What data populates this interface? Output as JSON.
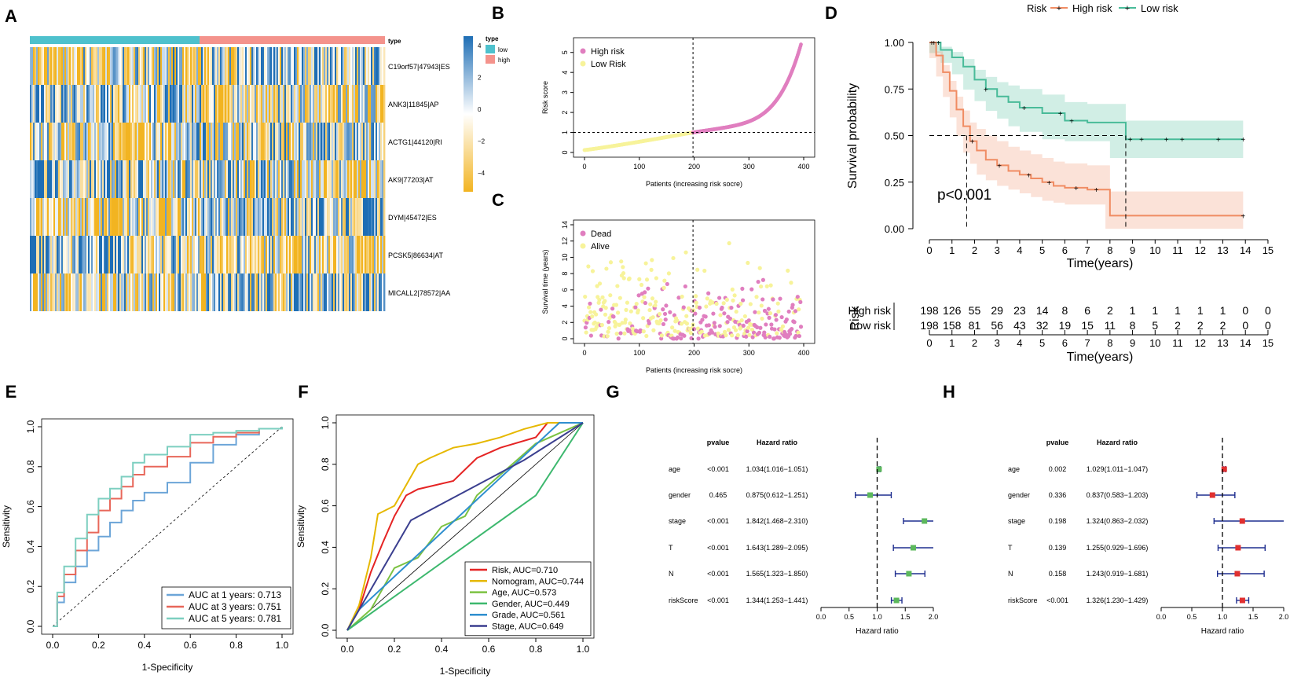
{
  "chart_data": [
    {
      "panel": "A",
      "type": "heatmap",
      "annotation_title": "type",
      "groups": [
        {
          "name": "low",
          "color": "#4EC1CD"
        },
        {
          "name": "high",
          "color": "#F4938C"
        }
      ],
      "rows": [
        "C19orf57|47943|ES",
        "ANK3|11845|AP",
        "ACTG1|44120|RI",
        "AK9|77203|AT",
        "DYM|45472|ES",
        "PCSK5|86634|AT",
        "MICALL2|78572|AA"
      ],
      "scale_ticks": [
        "4",
        "2",
        "0",
        "−2",
        "−4"
      ],
      "scale_colors": [
        "#1E6EB5",
        "#FFFFFF",
        "#F2B421"
      ]
    },
    {
      "panel": "B",
      "type": "scatter",
      "xlabel": "Patients (increasing risk socre)",
      "ylabel": "Risk score",
      "xticks": [
        "0",
        "100",
        "200",
        "300",
        "400"
      ],
      "yticks": [
        "0",
        "1",
        "2",
        "3",
        "4",
        "5"
      ],
      "xlim": [
        0,
        400
      ],
      "ylim": [
        0,
        5.5
      ],
      "cutoff_x": 198,
      "cutoff_y": 1,
      "legend": [
        "High risk",
        "Low Risk"
      ],
      "colors": {
        "high": "#E07EBF",
        "low": "#F7F39A"
      }
    },
    {
      "panel": "C",
      "type": "scatter",
      "xlabel": "Patients (increasing risk socre)",
      "ylabel": "Survival time (years)",
      "xticks": [
        "0",
        "100",
        "200",
        "300",
        "400"
      ],
      "yticks": [
        "0",
        "2",
        "4",
        "6",
        "8",
        "10",
        "12",
        "14"
      ],
      "xlim": [
        0,
        400
      ],
      "ylim": [
        0,
        14
      ],
      "cutoff_x": 198,
      "legend": [
        "Dead",
        "Alive"
      ],
      "colors": {
        "dead": "#E07EBF",
        "alive": "#F7F39A"
      }
    },
    {
      "panel": "D",
      "type": "line",
      "legend_title": "Risk",
      "legend": [
        "High risk",
        "Low risk"
      ],
      "colors": {
        "high": "#F08C63",
        "low": "#49BB99"
      },
      "xlabel": "Time(years)",
      "ylabel": "Survival probability",
      "xticks": [
        "0",
        "1",
        "2",
        "3",
        "4",
        "5",
        "6",
        "7",
        "8",
        "9",
        "10",
        "11",
        "12",
        "13",
        "14",
        "15"
      ],
      "yticks": [
        "0.00",
        "0.25",
        "0.50",
        "0.75",
        "1.00"
      ],
      "xlim": [
        0,
        15
      ],
      "ylim": [
        0,
        1
      ],
      "pvalue": "p<0.001",
      "median_high": 1.65,
      "median_low": 8.7,
      "high": {
        "t": [
          0,
          0.3,
          0.6,
          0.9,
          1.2,
          1.5,
          1.8,
          2.1,
          2.5,
          3,
          3.5,
          4,
          4.5,
          5,
          5.5,
          6,
          7,
          7.8,
          8,
          13.9
        ],
        "s": [
          1,
          0.93,
          0.84,
          0.74,
          0.64,
          0.55,
          0.47,
          0.42,
          0.37,
          0.34,
          0.31,
          0.29,
          0.27,
          0.25,
          0.23,
          0.22,
          0.21,
          0.21,
          0.07,
          0.07
        ]
      },
      "low": {
        "t": [
          0,
          0.5,
          1,
          1.5,
          2,
          2.5,
          3,
          3.5,
          4,
          5,
          6,
          7,
          8,
          8.7,
          13.9
        ],
        "s": [
          1,
          0.96,
          0.92,
          0.87,
          0.8,
          0.75,
          0.71,
          0.68,
          0.65,
          0.62,
          0.58,
          0.57,
          0.57,
          0.48,
          0.48
        ]
      },
      "risk_table": {
        "title": "Risk",
        "rows": [
          {
            "name": "High risk",
            "counts": [
              "198",
              "126",
              "55",
              "29",
              "23",
              "14",
              "8",
              "6",
              "2",
              "1",
              "1",
              "1",
              "1",
              "1",
              "0",
              "0"
            ]
          },
          {
            "name": "Low risk",
            "counts": [
              "198",
              "158",
              "81",
              "56",
              "43",
              "32",
              "19",
              "15",
              "11",
              "8",
              "5",
              "2",
              "2",
              "2",
              "0",
              "0"
            ]
          }
        ],
        "xlabel": "Time(years)"
      }
    },
    {
      "panel": "E",
      "type": "line",
      "xlabel": "1-Specificity",
      "ylabel": "Sensitivity",
      "ticks": [
        "0.0",
        "0.2",
        "0.4",
        "0.6",
        "0.8",
        "1.0"
      ],
      "series": [
        {
          "name": "AUC at 1 years: 0.713",
          "color": "#6CA5D8",
          "x": [
            0,
            0.02,
            0.05,
            0.1,
            0.15,
            0.2,
            0.25,
            0.3,
            0.35,
            0.4,
            0.5,
            0.6,
            0.7,
            0.8,
            0.9,
            1
          ],
          "y": [
            0,
            0.12,
            0.22,
            0.3,
            0.38,
            0.45,
            0.52,
            0.58,
            0.63,
            0.67,
            0.72,
            0.82,
            0.91,
            0.96,
            0.99,
            1
          ]
        },
        {
          "name": "AUC at 3 years: 0.751",
          "color": "#E8675A",
          "x": [
            0,
            0.02,
            0.05,
            0.1,
            0.15,
            0.2,
            0.25,
            0.3,
            0.35,
            0.4,
            0.5,
            0.6,
            0.7,
            0.8,
            0.9,
            1
          ],
          "y": [
            0,
            0.15,
            0.26,
            0.38,
            0.47,
            0.58,
            0.64,
            0.7,
            0.76,
            0.8,
            0.85,
            0.92,
            0.95,
            0.97,
            0.99,
            1
          ]
        },
        {
          "name": "AUC at 5 years: 0.781",
          "color": "#7DCFC0",
          "x": [
            0,
            0.02,
            0.05,
            0.1,
            0.15,
            0.2,
            0.25,
            0.3,
            0.35,
            0.4,
            0.5,
            0.6,
            0.7,
            0.8,
            0.9,
            1
          ],
          "y": [
            0,
            0.17,
            0.3,
            0.44,
            0.56,
            0.64,
            0.69,
            0.75,
            0.82,
            0.86,
            0.9,
            0.96,
            0.97,
            0.98,
            0.99,
            1
          ]
        }
      ]
    },
    {
      "panel": "F",
      "type": "line",
      "xlabel": "1-Specificity",
      "ylabel": "Sensitivity",
      "ticks": [
        "0.0",
        "0.2",
        "0.4",
        "0.6",
        "0.8",
        "1.0"
      ],
      "series": [
        {
          "name": "Risk, AUC=0.710",
          "color": "#E52424",
          "x": [
            0,
            0.05,
            0.1,
            0.15,
            0.2,
            0.25,
            0.3,
            0.45,
            0.55,
            0.65,
            0.8,
            0.85,
            1
          ],
          "y": [
            0,
            0.1,
            0.28,
            0.42,
            0.55,
            0.65,
            0.68,
            0.72,
            0.83,
            0.88,
            0.93,
            1,
            1
          ]
        },
        {
          "name": "Nomogram, AUC=0.744",
          "color": "#E6B800",
          "x": [
            0,
            0.05,
            0.1,
            0.13,
            0.2,
            0.25,
            0.3,
            0.35,
            0.45,
            0.55,
            0.65,
            0.75,
            0.85,
            1
          ],
          "y": [
            0,
            0.12,
            0.35,
            0.56,
            0.6,
            0.7,
            0.8,
            0.83,
            0.88,
            0.9,
            0.93,
            0.97,
            1,
            1
          ]
        },
        {
          "name": "Age, AUC=0.573",
          "color": "#7CC242",
          "x": [
            0,
            0.1,
            0.2,
            0.3,
            0.4,
            0.5,
            0.55,
            0.6,
            0.7,
            0.8,
            0.9,
            1
          ],
          "y": [
            0,
            0.1,
            0.3,
            0.35,
            0.5,
            0.55,
            0.65,
            0.7,
            0.8,
            0.9,
            0.95,
            1
          ]
        },
        {
          "name": "Gender, AUC=0.449",
          "color": "#3DB86E",
          "x": [
            0,
            0.8,
            1
          ],
          "y": [
            0,
            0.65,
            1
          ]
        },
        {
          "name": "Grade, AUC=0.561",
          "color": "#2F8FCF",
          "x": [
            0,
            0.05,
            0.9,
            1
          ],
          "y": [
            0,
            0.1,
            1,
            1
          ]
        },
        {
          "name": "Stage, AUC=0.649",
          "color": "#3B3F8F",
          "x": [
            0,
            0.27,
            0.75,
            1
          ],
          "y": [
            0,
            0.53,
            0.82,
            1
          ]
        }
      ]
    },
    {
      "panel": "G",
      "type": "forest",
      "headers": {
        "pvalue": "pvalue",
        "hr": "Hazard ratio"
      },
      "xlabel": "Hazard ratio",
      "xticks": [
        "0.0",
        "0.5",
        "1.0",
        "1.5",
        "2.0"
      ],
      "xlim": [
        0,
        2
      ],
      "marker_color": "#5CB85C",
      "rows": [
        {
          "name": "age",
          "p": "<0.001",
          "hr_text": "1.034(1.016−1.051)",
          "hr": 1.034,
          "lo": 1.016,
          "hi": 1.051
        },
        {
          "name": "gender",
          "p": "0.465",
          "hr_text": "0.875(0.612−1.251)",
          "hr": 0.875,
          "lo": 0.612,
          "hi": 1.251
        },
        {
          "name": "stage",
          "p": "<0.001",
          "hr_text": "1.842(1.468−2.310)",
          "hr": 1.842,
          "lo": 1.468,
          "hi": 2.31
        },
        {
          "name": "T",
          "p": "<0.001",
          "hr_text": "1.643(1.289−2.095)",
          "hr": 1.643,
          "lo": 1.289,
          "hi": 2.095
        },
        {
          "name": "N",
          "p": "<0.001",
          "hr_text": "1.565(1.323−1.850)",
          "hr": 1.565,
          "lo": 1.323,
          "hi": 1.85
        },
        {
          "name": "riskScore",
          "p": "<0.001",
          "hr_text": "1.344(1.253−1.441)",
          "hr": 1.344,
          "lo": 1.253,
          "hi": 1.441
        }
      ]
    },
    {
      "panel": "H",
      "type": "forest",
      "headers": {
        "pvalue": "pvalue",
        "hr": "Hazard ratio"
      },
      "xlabel": "Hazard ratio",
      "xticks": [
        "0.0",
        "0.5",
        "1.0",
        "1.5",
        "2.0"
      ],
      "xlim": [
        0,
        2
      ],
      "marker_color": "#E03030",
      "rows": [
        {
          "name": "age",
          "p": "0.002",
          "hr_text": "1.029(1.011−1.047)",
          "hr": 1.029,
          "lo": 1.011,
          "hi": 1.047
        },
        {
          "name": "gender",
          "p": "0.336",
          "hr_text": "0.837(0.583−1.203)",
          "hr": 0.837,
          "lo": 0.583,
          "hi": 1.203
        },
        {
          "name": "stage",
          "p": "0.198",
          "hr_text": "1.324(0.863−2.032)",
          "hr": 1.324,
          "lo": 0.863,
          "hi": 2.032
        },
        {
          "name": "T",
          "p": "0.139",
          "hr_text": "1.255(0.929−1.696)",
          "hr": 1.255,
          "lo": 0.929,
          "hi": 1.696
        },
        {
          "name": "N",
          "p": "0.158",
          "hr_text": "1.243(0.919−1.681)",
          "hr": 1.243,
          "lo": 0.919,
          "hi": 1.681
        },
        {
          "name": "riskScore",
          "p": "<0.001",
          "hr_text": "1.326(1.230−1.429)",
          "hr": 1.326,
          "lo": 1.23,
          "hi": 1.429
        }
      ]
    }
  ],
  "panel_labels": [
    "A",
    "B",
    "C",
    "D",
    "E",
    "F",
    "G",
    "H"
  ]
}
